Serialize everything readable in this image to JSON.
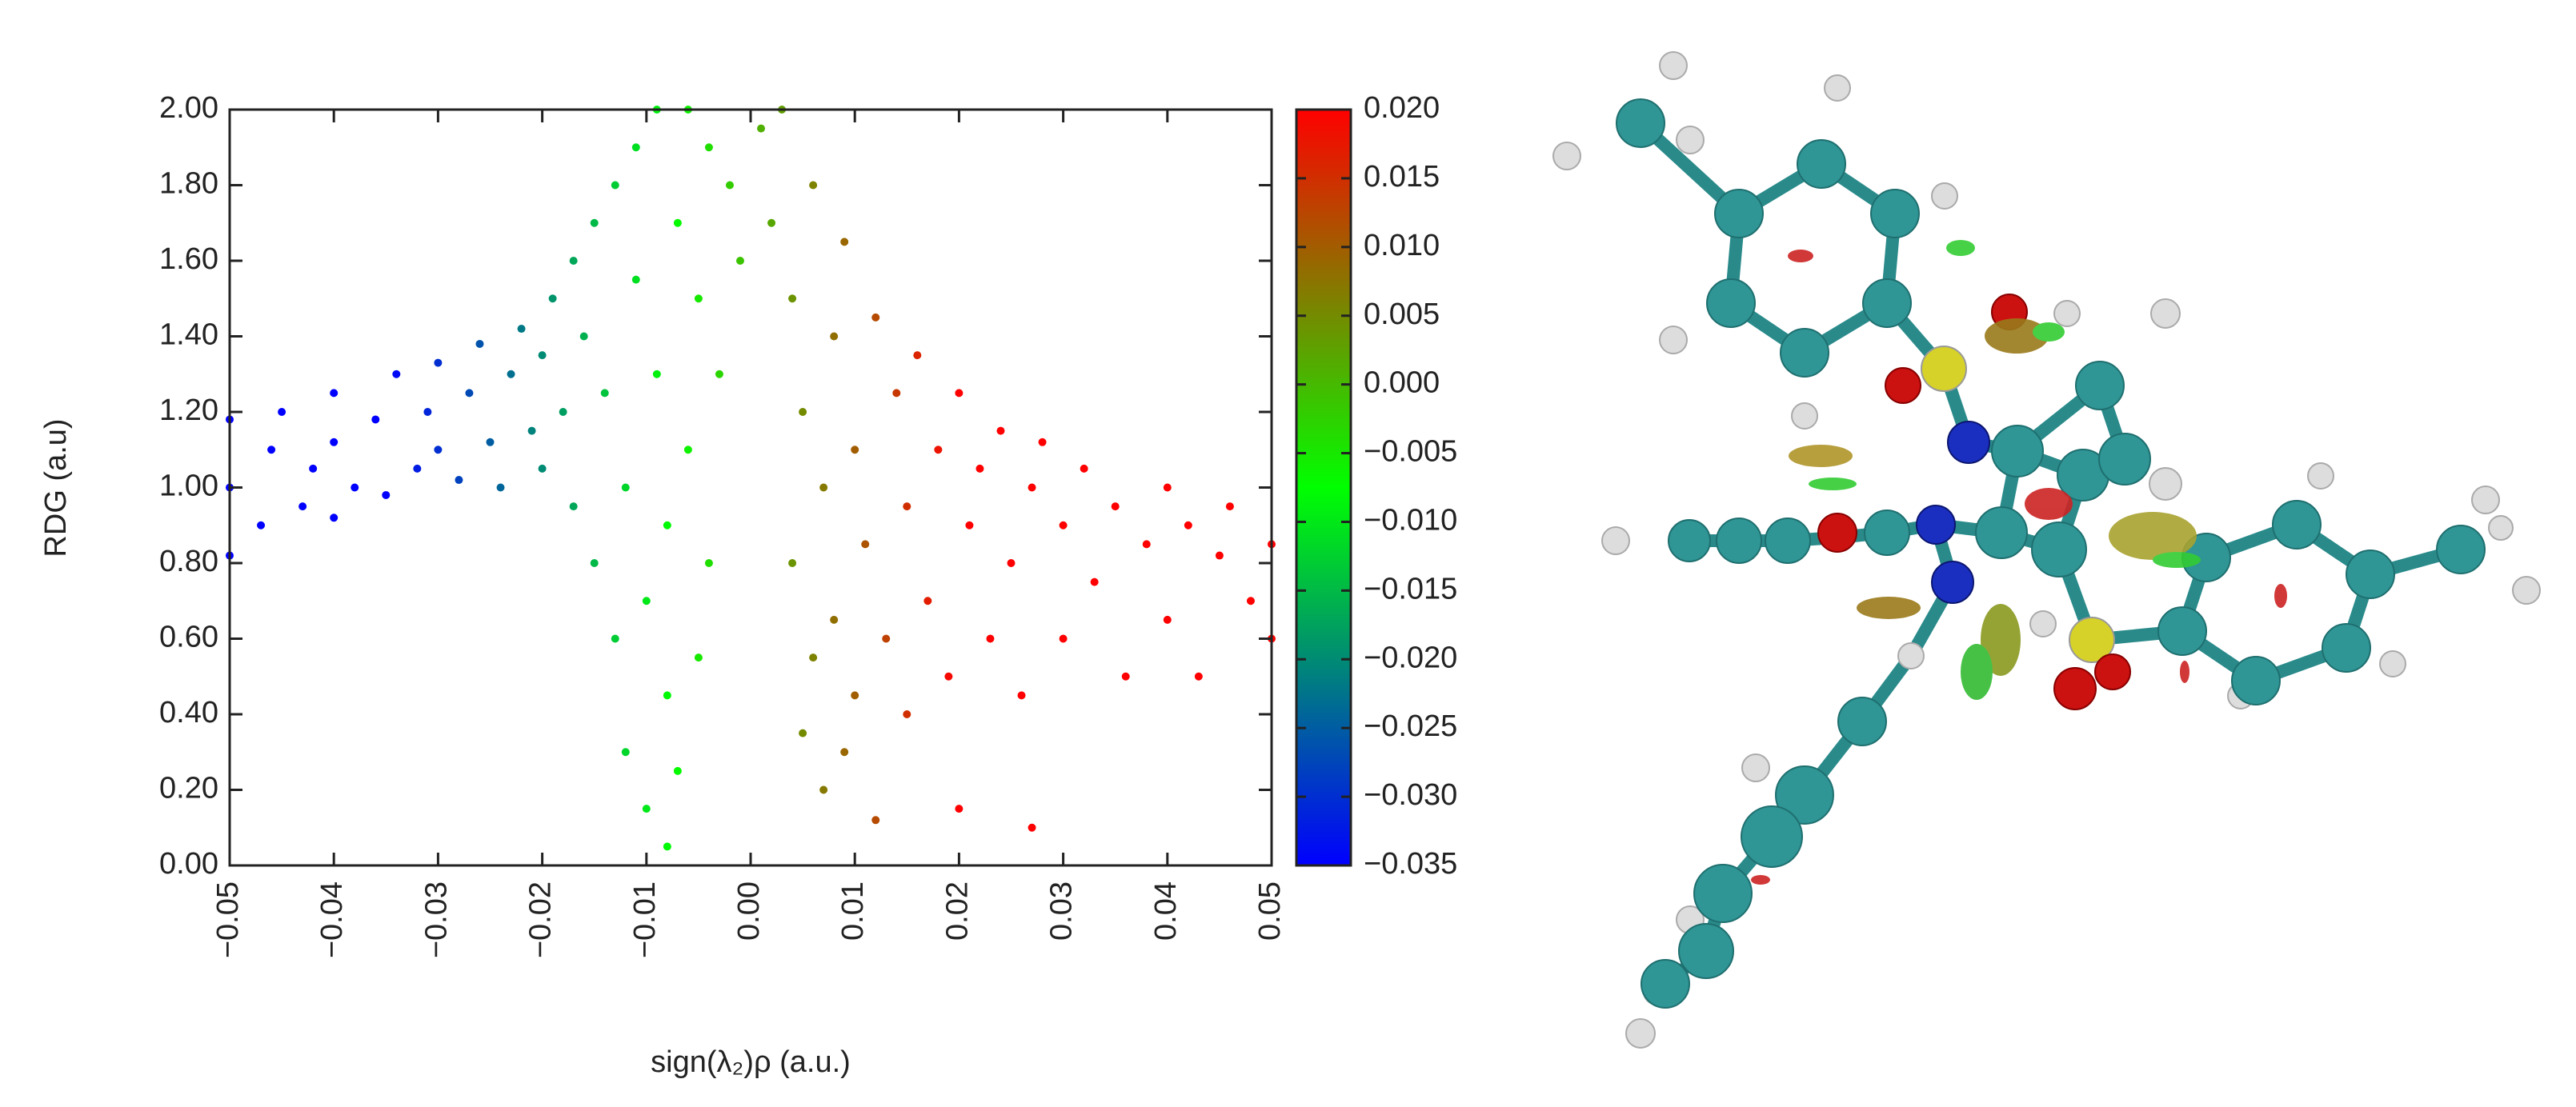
{
  "chart_data": {
    "type": "scatter",
    "x_label": "sign(λ₂)ρ (a.u.)",
    "y_label": "RDG (a.u)",
    "x": [
      -0.05,
      -0.05,
      -0.05,
      -0.047,
      -0.046,
      -0.045,
      -0.043,
      -0.042,
      -0.04,
      -0.04,
      -0.04,
      -0.038,
      -0.036,
      -0.035,
      -0.034,
      -0.032,
      -0.031,
      -0.03,
      -0.03,
      -0.028,
      -0.027,
      -0.026,
      -0.025,
      -0.024,
      -0.023,
      -0.022,
      -0.021,
      -0.02,
      -0.02,
      -0.019,
      -0.018,
      -0.017,
      -0.017,
      -0.016,
      -0.015,
      -0.015,
      -0.014,
      -0.013,
      -0.013,
      -0.012,
      -0.012,
      -0.011,
      -0.011,
      -0.01,
      -0.01,
      -0.009,
      -0.009,
      -0.008,
      -0.008,
      -0.008,
      -0.007,
      -0.007,
      -0.006,
      -0.006,
      -0.005,
      -0.005,
      -0.004,
      -0.004,
      -0.003,
      -0.002,
      -0.001,
      0.001,
      0.002,
      0.003,
      0.004,
      0.004,
      0.005,
      0.005,
      0.006,
      0.006,
      0.007,
      0.007,
      0.008,
      0.008,
      0.009,
      0.009,
      0.01,
      0.01,
      0.011,
      0.012,
      0.012,
      0.013,
      0.014,
      0.015,
      0.015,
      0.016,
      0.017,
      0.018,
      0.019,
      0.02,
      0.02,
      0.021,
      0.022,
      0.023,
      0.024,
      0.025,
      0.026,
      0.027,
      0.027,
      0.028,
      0.03,
      0.03,
      0.032,
      0.033,
      0.035,
      0.036,
      0.038,
      0.04,
      0.04,
      0.042,
      0.043,
      0.045,
      0.046,
      0.048,
      0.05,
      0.05
    ],
    "y": [
      0.82,
      1.0,
      1.18,
      0.9,
      1.1,
      1.2,
      0.95,
      1.05,
      0.92,
      1.12,
      1.25,
      1.0,
      1.18,
      0.98,
      1.3,
      1.05,
      1.2,
      1.1,
      1.33,
      1.02,
      1.25,
      1.38,
      1.12,
      1.0,
      1.3,
      1.42,
      1.15,
      1.05,
      1.35,
      1.5,
      1.2,
      0.95,
      1.6,
      1.4,
      0.8,
      1.7,
      1.25,
      0.6,
      1.8,
      1.0,
      0.3,
      1.55,
      1.9,
      0.7,
      0.15,
      1.3,
      2.0,
      0.45,
      0.9,
      0.05,
      1.7,
      0.25,
      1.1,
      2.0,
      0.55,
      1.5,
      1.9,
      0.8,
      1.3,
      1.8,
      1.6,
      1.95,
      1.7,
      2.0,
      1.5,
      0.8,
      1.2,
      0.35,
      1.8,
      0.55,
      1.0,
      0.2,
      1.4,
      0.65,
      1.65,
      0.3,
      1.1,
      0.45,
      0.85,
      1.45,
      0.12,
      0.6,
      1.25,
      0.95,
      0.4,
      1.35,
      0.7,
      1.1,
      0.5,
      1.25,
      0.15,
      0.9,
      1.05,
      0.6,
      1.15,
      0.8,
      0.45,
      1.0,
      0.1,
      1.12,
      0.9,
      0.6,
      1.05,
      0.75,
      0.95,
      0.5,
      0.85,
      1.0,
      0.65,
      0.9,
      0.5,
      0.82,
      0.95,
      0.7,
      0.85,
      0.6
    ],
    "xlim": [
      -0.05,
      0.05
    ],
    "ylim": [
      0,
      2
    ],
    "xticks": [
      {
        "value": -0.05,
        "label": "−0.05"
      },
      {
        "value": -0.04,
        "label": "−0.04"
      },
      {
        "value": -0.03,
        "label": "−0.03"
      },
      {
        "value": -0.02,
        "label": "−0.02"
      },
      {
        "value": -0.01,
        "label": "−0.01"
      },
      {
        "value": 0,
        "label": "0.00"
      },
      {
        "value": 0.01,
        "label": "0.01"
      },
      {
        "value": 0.02,
        "label": "0.02"
      },
      {
        "value": 0.03,
        "label": "0.03"
      },
      {
        "value": 0.04,
        "label": "0.04"
      },
      {
        "value": 0.05,
        "label": "0.05"
      }
    ],
    "yticks": [
      {
        "value": 0,
        "label": "0.00"
      },
      {
        "value": 0.2,
        "label": "0.20"
      },
      {
        "value": 0.4,
        "label": "0.40"
      },
      {
        "value": 0.6,
        "label": "0.60"
      },
      {
        "value": 0.8,
        "label": "0.80"
      },
      {
        "value": 1,
        "label": "1.00"
      },
      {
        "value": 1.2,
        "label": "1.20"
      },
      {
        "value": 1.4,
        "label": "1.40"
      },
      {
        "value": 1.6,
        "label": "1.60"
      },
      {
        "value": 1.8,
        "label": "1.80"
      },
      {
        "value": 2,
        "label": "2.00"
      }
    ],
    "colormap": [
      "#0000ff",
      "#00ff00",
      "#ff0000"
    ],
    "clim": [
      -0.035,
      0.02
    ],
    "cticks": [
      {
        "value": -0.035,
        "label": "−0.035"
      },
      {
        "value": -0.03,
        "label": "−0.030"
      },
      {
        "value": -0.025,
        "label": "−0.025"
      },
      {
        "value": -0.02,
        "label": "−0.020"
      },
      {
        "value": -0.015,
        "label": "−0.015"
      },
      {
        "value": -0.01,
        "label": "−0.010"
      },
      {
        "value": -0.005,
        "label": "−0.005"
      },
      {
        "value": 0,
        "label": "0.000"
      },
      {
        "value": 0.005,
        "label": "0.005"
      },
      {
        "value": 0.01,
        "label": "0.010"
      },
      {
        "value": 0.015,
        "label": "0.015"
      },
      {
        "value": 0.02,
        "label": "0.020"
      }
    ]
  }
}
